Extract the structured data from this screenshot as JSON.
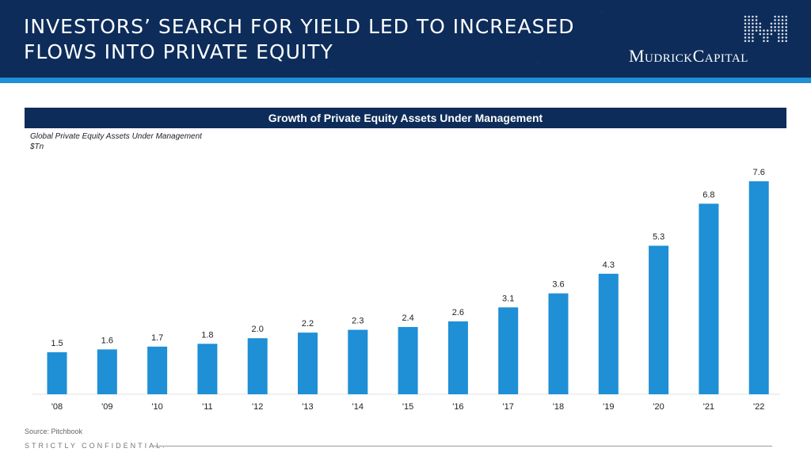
{
  "header": {
    "title_line1": "INVESTORS’ SEARCH FOR YIELD LED TO INCREASED",
    "title_line2": "FLOWS INTO PRIVATE EQUITY",
    "logo_text": "MudrickCapital"
  },
  "chart_title": "Growth of Private Equity Assets Under Management",
  "subtitle_line1": "Global Private Equity Assets Under Management",
  "subtitle_line2": "$Tn",
  "footer": {
    "source": "Source: Pitchbook",
    "confidential": "STRICTLY CONFIDENTIAL."
  },
  "colors": {
    "navy": "#0d2c5a",
    "bar": "#1f8fd6",
    "accent": "#1f8fd6"
  },
  "chart_data": {
    "type": "bar",
    "title": "Growth of Private Equity Assets Under Management",
    "xlabel": "",
    "ylabel": "$Tn",
    "categories": [
      "'08",
      "'09",
      "'10",
      "'11",
      "'12",
      "'13",
      "'14",
      "'15",
      "'16",
      "'17",
      "'18",
      "'19",
      "'20",
      "'21",
      "'22"
    ],
    "values": [
      1.5,
      1.6,
      1.7,
      1.8,
      2.0,
      2.2,
      2.3,
      2.4,
      2.6,
      3.1,
      3.6,
      4.3,
      5.3,
      6.8,
      7.6
    ],
    "value_labels": [
      "1.5",
      "1.6",
      "1.7",
      "1.8",
      "2.0",
      "2.2",
      "2.3",
      "2.4",
      "2.6",
      "3.1",
      "3.6",
      "4.3",
      "5.3",
      "6.8",
      "7.6"
    ],
    "ylim": [
      0,
      7.6
    ],
    "grid": false,
    "legend": "none"
  }
}
